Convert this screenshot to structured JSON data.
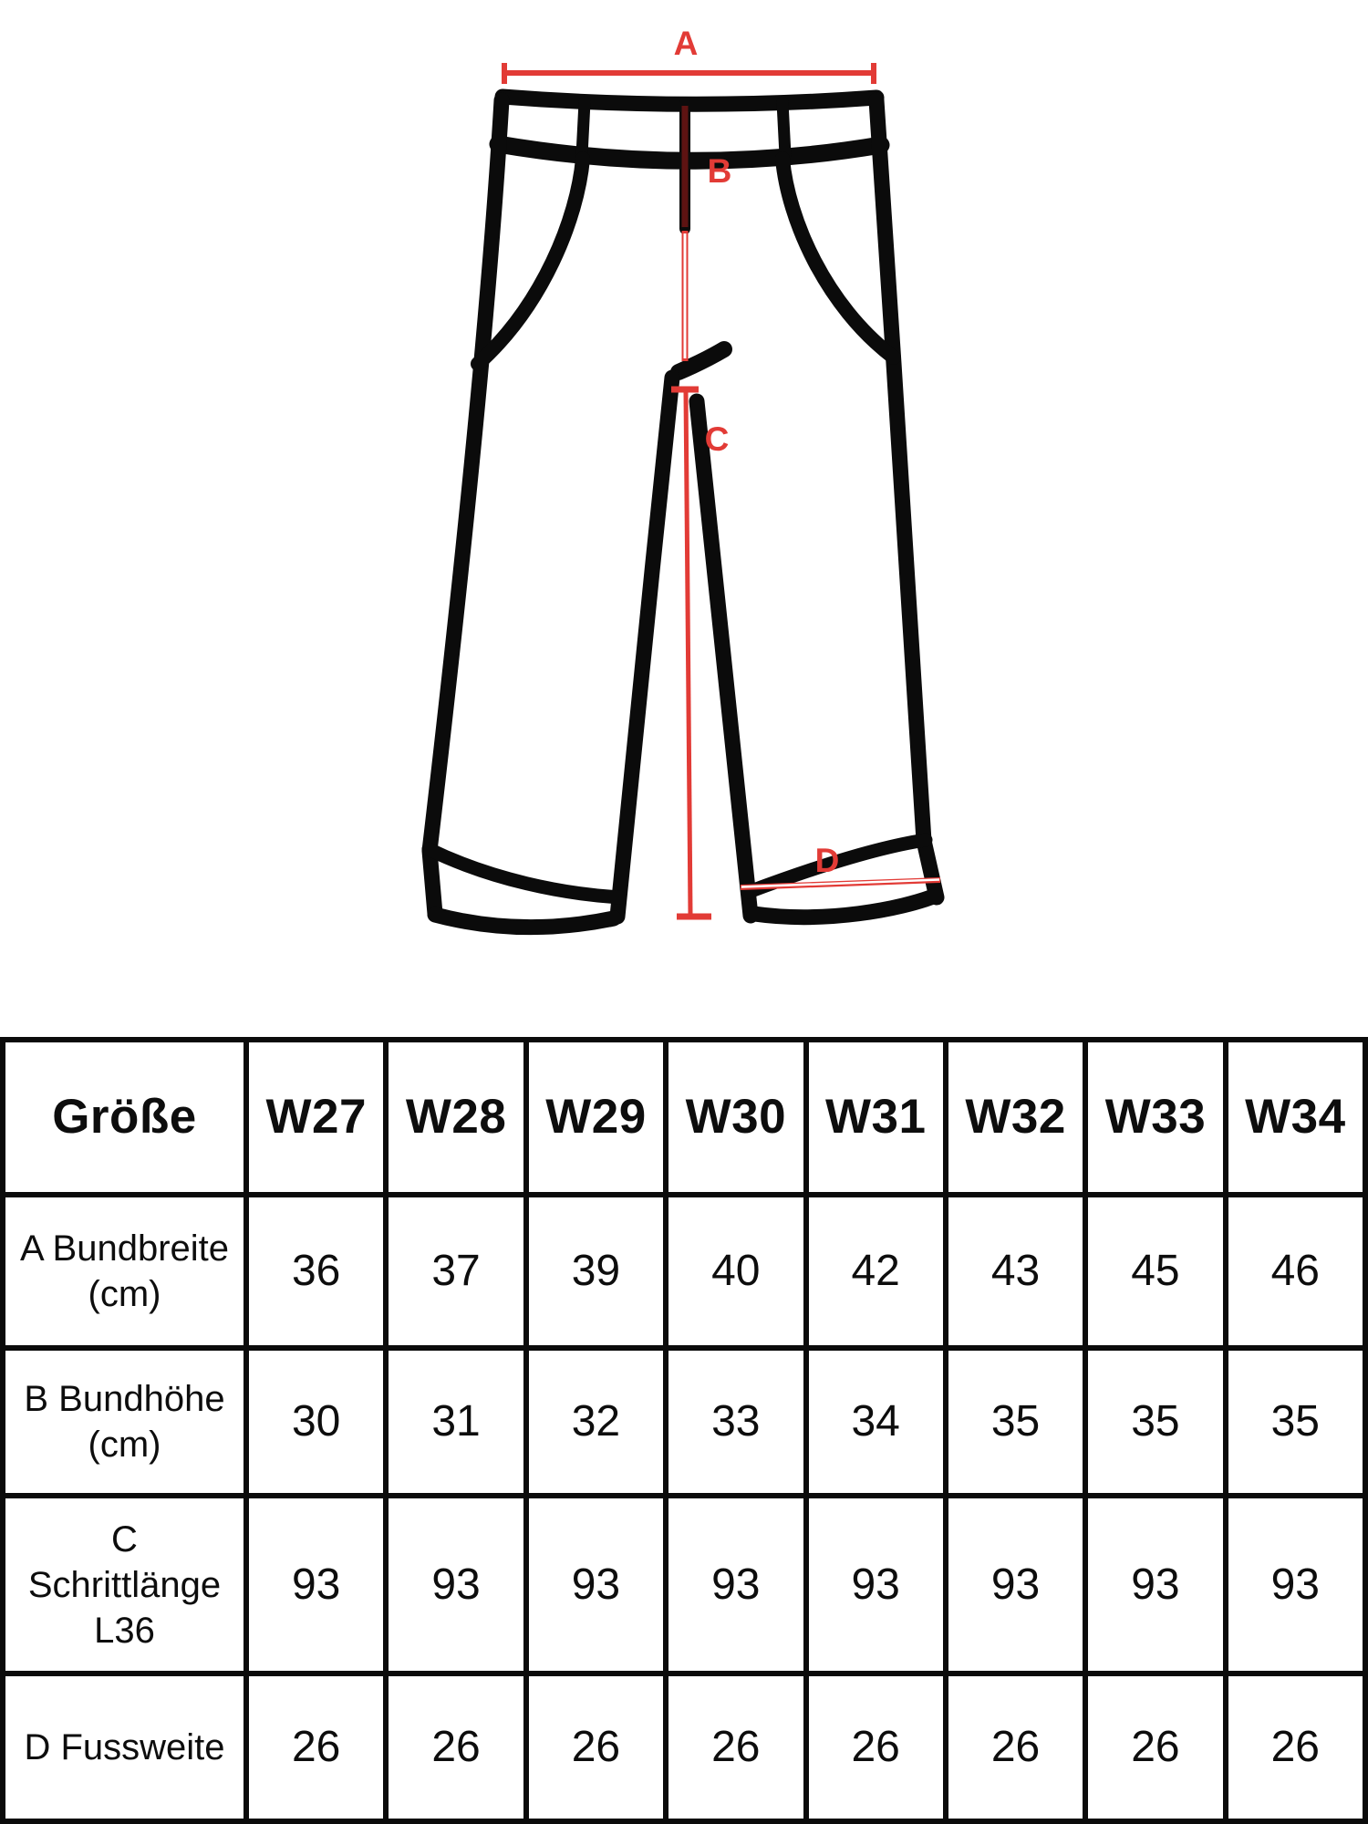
{
  "diagram": {
    "measure_a_label": "A",
    "measure_b_label": "B",
    "measure_c_label": "C",
    "measure_d_label": "D",
    "annotation_color": "#E23B36",
    "overlap_dark_red": "#5E1312",
    "outline_color": "#0B0B0B"
  },
  "table": {
    "header": [
      "Größe",
      "W27",
      "W28",
      "W29",
      "W30",
      "W31",
      "W32",
      "W33",
      "W34"
    ],
    "rows": [
      {
        "label_lines": [
          "A Bundbreite",
          "(cm)"
        ],
        "values": [
          "36",
          "37",
          "39",
          "40",
          "42",
          "43",
          "45",
          "46"
        ]
      },
      {
        "label_lines": [
          "B Bundhöhe",
          "(cm)"
        ],
        "values": [
          "30",
          "31",
          "32",
          "33",
          "34",
          "35",
          "35",
          "35"
        ]
      },
      {
        "label_lines": [
          "C",
          "Schrittlänge",
          "L36"
        ],
        "values": [
          "93",
          "93",
          "93",
          "93",
          "93",
          "93",
          "93",
          "93"
        ]
      },
      {
        "label_lines": [
          "D Fussweite"
        ],
        "values": [
          "26",
          "26",
          "26",
          "26",
          "26",
          "26",
          "26",
          "26"
        ]
      }
    ]
  }
}
